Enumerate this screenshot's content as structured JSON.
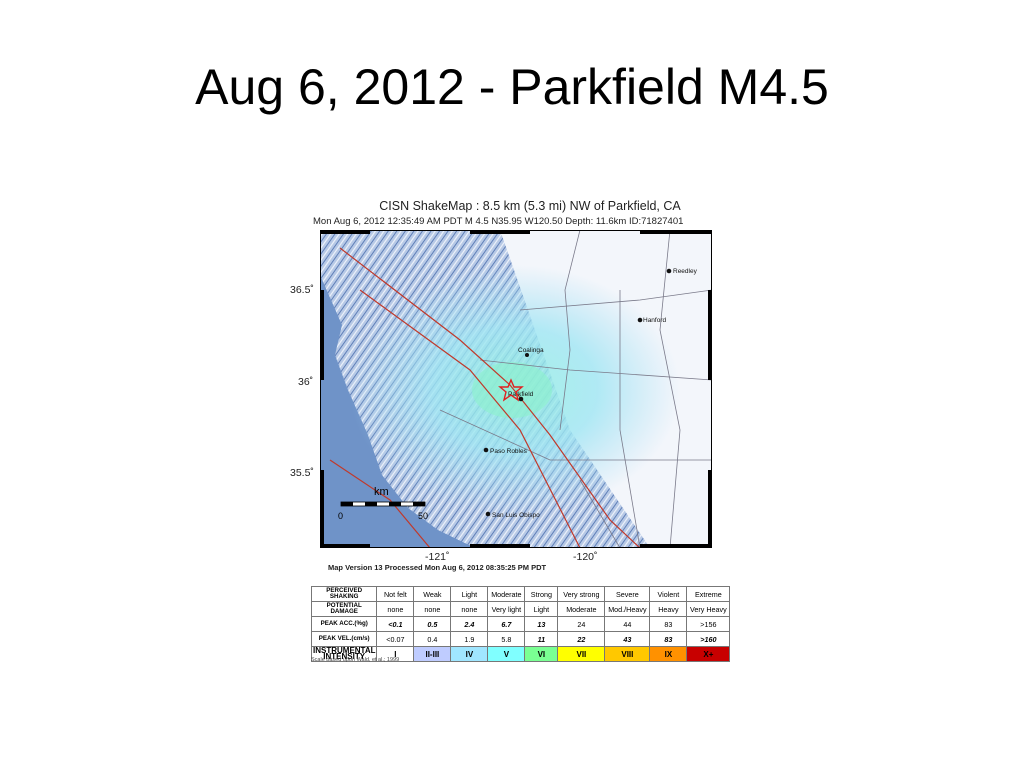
{
  "slide": {
    "title": "Aug 6, 2012 - Parkfield M4.5"
  },
  "shakemap": {
    "title": "CISN ShakeMap : 8.5 km (5.3 mi) NW of Parkfield, CA",
    "subtitle": "Mon Aug  6, 2012 12:35:49 AM PDT   M 4.5    N35.95 W120.50    Depth: 11.6km   ID:71827401",
    "lat_labels": [
      "36.5˚",
      "36˚",
      "35.5˚"
    ],
    "lon_labels": [
      "-121˚",
      "-120˚"
    ],
    "towns": [
      "Reedley",
      "Hanford",
      "Coalinga",
      "Parkfield",
      "Paso Robles",
      "San Luis Obispo"
    ],
    "scalebar": {
      "unit": "km",
      "start": "0",
      "end": "50"
    },
    "version": "Map Version 13 Processed Mon Aug  6, 2012 08:35:25 PM PDT",
    "colors": {
      "ocean": "#6f93c8",
      "land": "#e9eff8",
      "fault": "#c0392b",
      "epicenter": "#e02020"
    }
  },
  "intensity_scale": {
    "rows": [
      {
        "label": "PERCEIVED SHAKING",
        "cells": [
          "Not felt",
          "Weak",
          "Light",
          "Moderate",
          "Strong",
          "Very strong",
          "Severe",
          "Violent",
          "Extreme"
        ]
      },
      {
        "label": "POTENTIAL DAMAGE",
        "cells": [
          "none",
          "none",
          "none",
          "Very light",
          "Light",
          "Moderate",
          "Mod./Heavy",
          "Heavy",
          "Very Heavy"
        ]
      },
      {
        "label": "PEAK ACC.(%g)",
        "cells": [
          "<0.1",
          "0.5",
          "2.4",
          "6.7",
          "13",
          "24",
          "44",
          "83",
          ">156"
        ]
      },
      {
        "label": "PEAK VEL.(cm/s)",
        "cells": [
          "<0.07",
          "0.4",
          "1.9",
          "5.8",
          "11",
          "22",
          "43",
          "83",
          ">160"
        ]
      }
    ],
    "intensity_label": "INSTRUMENTAL INTENSITY",
    "intensities": [
      "I",
      "II-III",
      "IV",
      "V",
      "VI",
      "VII",
      "VIII",
      "IX",
      "X+"
    ],
    "intensity_colors": [
      "#ffffff",
      "#bfccff",
      "#a0e6ff",
      "#80ffff",
      "#7aff93",
      "#ffff00",
      "#ffc800",
      "#ff9100",
      "#c80000"
    ],
    "note": "Scale based upon Wald, et al.; 1999"
  }
}
